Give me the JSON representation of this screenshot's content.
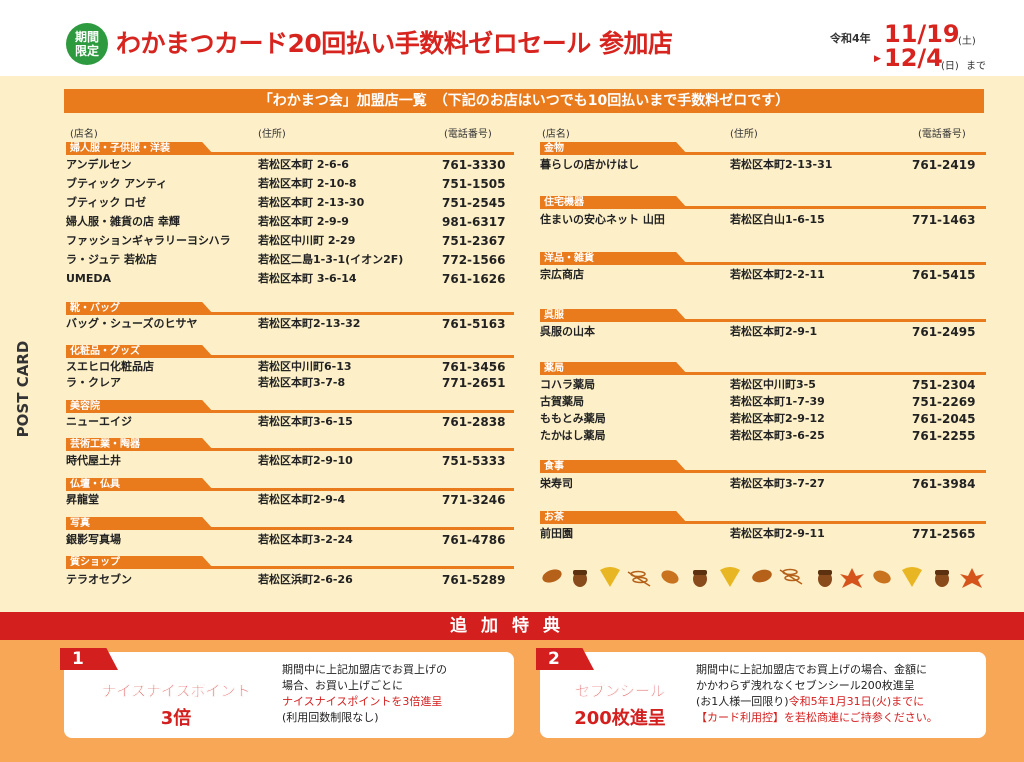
{
  "header": {
    "badge_line1": "期間",
    "badge_line2": "限定",
    "title": "わかまつカード20回払い手数料ゼロセール 参加店",
    "era": "令和4年",
    "date1": "11/19",
    "date1_weekday": "(土)",
    "arrow": "▶",
    "date2": "12/4",
    "date2_weekday": "(日)",
    "date2_suffix": "まで"
  },
  "side_label": "POST CARD",
  "banner": "「わかまつ会」加盟店一覧　（下記のお店はいつでも10回払いまで手数料ゼロです）",
  "columns": {
    "name": "(店名)",
    "address": "(住所)",
    "phone": "(電話番号)"
  },
  "left_categories": [
    {
      "label": "婦人服・子供服・洋装",
      "shops": [
        {
          "name": "アンデルセン",
          "address": "若松区本町 2-6-6",
          "phone": "761-3330"
        },
        {
          "name": "ブティック アンティ",
          "address": "若松区本町 2-10-8",
          "phone": "751-1505"
        },
        {
          "name": "ブティック ロゼ",
          "address": "若松区本町 2-13-30",
          "phone": "751-2545"
        },
        {
          "name": "婦人服・雑貨の店 幸輝",
          "address": "若松区本町 2-9-9",
          "phone": "981-6317"
        },
        {
          "name": "ファッションギャラリーヨシハラ",
          "address": "若松区中川町 2-29",
          "phone": "751-2367"
        },
        {
          "name": "ラ・ジュテ 若松店",
          "address": "若松区二島1-3-1(イオン2F)",
          "phone": "772-1566"
        },
        {
          "name": "UMEDA",
          "address": "若松区本町 3-6-14",
          "phone": "761-1626"
        }
      ]
    },
    {
      "label": "靴・バッグ",
      "shops": [
        {
          "name": "バッグ・シューズのヒサヤ",
          "address": "若松区本町2-13-32",
          "phone": "761-5163"
        }
      ]
    },
    {
      "label": "化粧品・グッズ",
      "shops": [
        {
          "name": "スエヒロ化粧品店",
          "address": "若松区中川町6-13",
          "phone": "761-3456"
        },
        {
          "name": "ラ・クレア",
          "address": "若松区本町3-7-8",
          "phone": "771-2651"
        }
      ]
    },
    {
      "label": "美容院",
      "shops": [
        {
          "name": "ニューエイジ",
          "address": "若松区本町3-6-15",
          "phone": "761-2838"
        }
      ]
    },
    {
      "label": "芸術工業・陶器",
      "shops": [
        {
          "name": "時代屋土井",
          "address": "若松区本町2-9-10",
          "phone": "751-5333"
        }
      ]
    },
    {
      "label": "仏壇・仏具",
      "shops": [
        {
          "name": "昇龍堂",
          "address": "若松区本町2-9-4",
          "phone": "771-3246"
        }
      ]
    },
    {
      "label": "写真",
      "shops": [
        {
          "name": "銀影写真場",
          "address": "若松区本町3-2-24",
          "phone": "761-4786"
        }
      ]
    },
    {
      "label": "質ショップ",
      "shops": [
        {
          "name": "テラオセブン",
          "address": "若松区浜町2-6-26",
          "phone": "761-5289"
        }
      ]
    }
  ],
  "right_categories": [
    {
      "label": "金物",
      "shops": [
        {
          "name": "暮らしの店かけはし",
          "address": "若松区本町2-13-31",
          "phone": "761-2419"
        }
      ]
    },
    {
      "label": "住宅機器",
      "shops": [
        {
          "name": "住まいの安心ネット 山田",
          "address": "若松区白山1-6-15",
          "phone": "771-1463"
        }
      ]
    },
    {
      "label": "洋品・雑貨",
      "shops": [
        {
          "name": "宗広商店",
          "address": "若松区本町2-2-11",
          "phone": "761-5415"
        }
      ]
    },
    {
      "label": "呉服",
      "shops": [
        {
          "name": "呉服の山本",
          "address": "若松区本町2-9-1",
          "phone": "761-2495"
        }
      ]
    },
    {
      "label": "薬局",
      "shops": [
        {
          "name": "コハラ薬局",
          "address": "若松区中川町3-5",
          "phone": "751-2304"
        },
        {
          "name": "古賀薬局",
          "address": "若松区本町1-7-39",
          "phone": "751-2269"
        },
        {
          "name": "ももとみ薬局",
          "address": "若松区本町2-9-12",
          "phone": "761-2045"
        },
        {
          "name": "たかはし薬局",
          "address": "若松区本町3-6-25",
          "phone": "761-2255"
        }
      ]
    },
    {
      "label": "食事",
      "shops": [
        {
          "name": "栄寿司",
          "address": "若松区本町3-7-27",
          "phone": "761-3984"
        }
      ]
    },
    {
      "label": "お茶",
      "shops": [
        {
          "name": "前田園",
          "address": "若松区本町2-9-11",
          "phone": "771-2565"
        }
      ]
    }
  ],
  "bonus": {
    "heading": "追加特典",
    "items": [
      {
        "number": "1",
        "title": "ナイスナイスポイント",
        "big": "3倍",
        "line1": "期間中に上記加盟店でお買上げの",
        "line2": "場合、お買い上げごとに",
        "line3": "ナイスナイスポイントを3倍進呈",
        "line4": "(利用回数制限なし)"
      },
      {
        "number": "2",
        "title": "セブンシール",
        "big": "200枚進呈",
        "line1": "期間中に上記加盟店でお買上げの場合、金額に",
        "line2": "かかわらず洩れなくセブンシール200枚進呈",
        "line3a": "(お1人様一回限り)",
        "line3b": "令和5年1月31日(火)までに",
        "line4": "【カード利用控】を若松商連にご持参ください。"
      }
    ]
  },
  "colors": {
    "accent": "#e97b1c",
    "red": "#d41f1f",
    "green": "#2e9a3f",
    "panel": "#fdf0c9",
    "bottom": "#f7a756"
  }
}
